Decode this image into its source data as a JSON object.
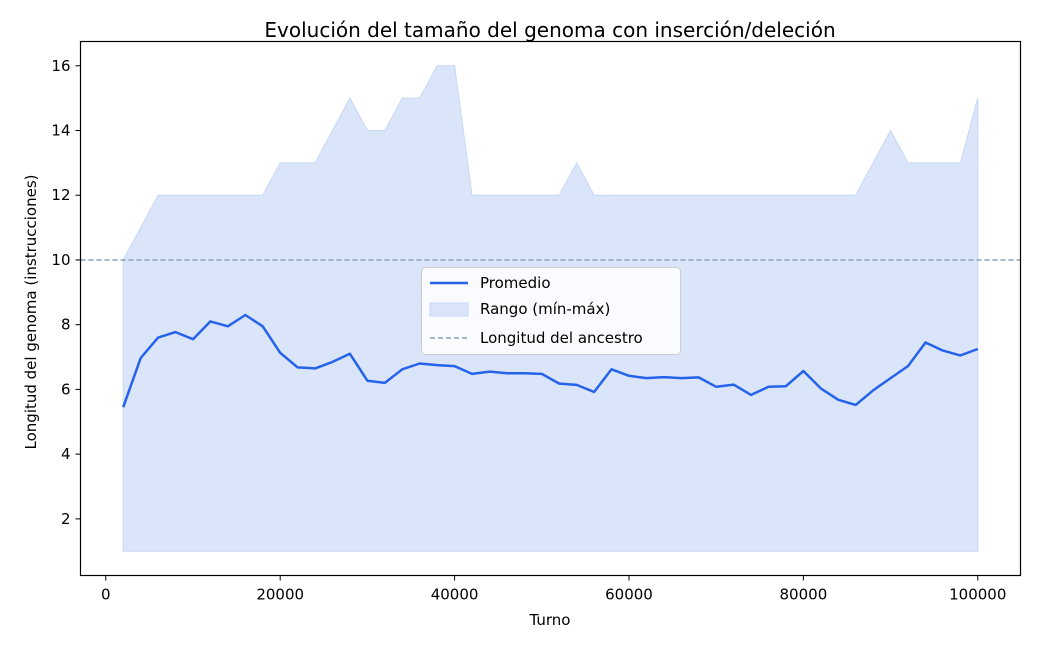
{
  "chart_data": {
    "type": "line",
    "title": "Evolución del tamaño del genoma con inserción/deleción",
    "xlabel": "Turno",
    "ylabel": "Longitud del genoma (instrucciones)",
    "xlim": [
      -2900,
      104900
    ],
    "ylim": [
      0.25,
      16.75
    ],
    "xticks": [
      0,
      20000,
      40000,
      60000,
      80000,
      100000
    ],
    "xtick_labels": [
      "0",
      "20000",
      "40000",
      "60000",
      "80000",
      "100000"
    ],
    "yticks": [
      2,
      4,
      6,
      8,
      10,
      12,
      14,
      16
    ],
    "ytick_labels": [
      "2",
      "4",
      "6",
      "8",
      "10",
      "12",
      "14",
      "16"
    ],
    "grid": false,
    "legend": {
      "placement": "center"
    },
    "x": [
      2000,
      4000,
      6000,
      8000,
      10000,
      12000,
      14000,
      16000,
      18000,
      20000,
      22000,
      24000,
      26000,
      28000,
      30000,
      32000,
      34000,
      36000,
      38000,
      40000,
      42000,
      44000,
      46000,
      48000,
      50000,
      52000,
      54000,
      56000,
      58000,
      60000,
      62000,
      64000,
      66000,
      68000,
      70000,
      72000,
      74000,
      76000,
      78000,
      80000,
      82000,
      84000,
      86000,
      88000,
      90000,
      92000,
      94000,
      96000,
      98000,
      100000
    ],
    "series": [
      {
        "name": "Promedio",
        "kind": "line",
        "color": "#2563eb",
        "values": [
          5.45,
          6.97,
          7.6,
          7.77,
          7.55,
          8.1,
          7.95,
          8.3,
          7.95,
          7.13,
          6.68,
          6.65,
          6.85,
          7.1,
          6.27,
          6.2,
          6.62,
          6.8,
          6.75,
          6.72,
          6.48,
          6.55,
          6.5,
          6.5,
          6.48,
          6.18,
          6.14,
          5.92,
          6.62,
          6.42,
          6.35,
          6.38,
          6.35,
          6.37,
          6.08,
          6.15,
          5.83,
          6.08,
          6.1,
          6.57,
          6.03,
          5.68,
          5.52,
          5.97,
          6.35,
          6.72,
          7.45,
          7.2,
          7.05,
          7.25
        ]
      },
      {
        "name": "Rango (mín-máx)",
        "kind": "band",
        "color": "#c7d7f7",
        "min": [
          1,
          1,
          1,
          1,
          1,
          1,
          1,
          1,
          1,
          1,
          1,
          1,
          1,
          1,
          1,
          1,
          1,
          1,
          1,
          1,
          1,
          1,
          1,
          1,
          1,
          1,
          1,
          1,
          1,
          1,
          1,
          1,
          1,
          1,
          1,
          1,
          1,
          1,
          1,
          1,
          1,
          1,
          1,
          1,
          1,
          1,
          1,
          1,
          1,
          1
        ],
        "max": [
          10,
          11,
          12,
          12,
          12,
          12,
          12,
          12,
          12,
          13,
          13,
          13,
          14,
          15,
          14,
          14,
          15,
          15,
          16,
          16,
          12,
          12,
          12,
          12,
          12,
          12,
          13,
          12,
          12,
          12,
          12,
          12,
          12,
          12,
          12,
          12,
          12,
          12,
          12,
          12,
          12,
          12,
          12,
          13,
          14,
          13,
          13,
          13,
          13,
          15
        ]
      },
      {
        "name": "Longitud del ancestro",
        "kind": "hline",
        "color": "#8aa1bb",
        "y": 10
      }
    ]
  }
}
